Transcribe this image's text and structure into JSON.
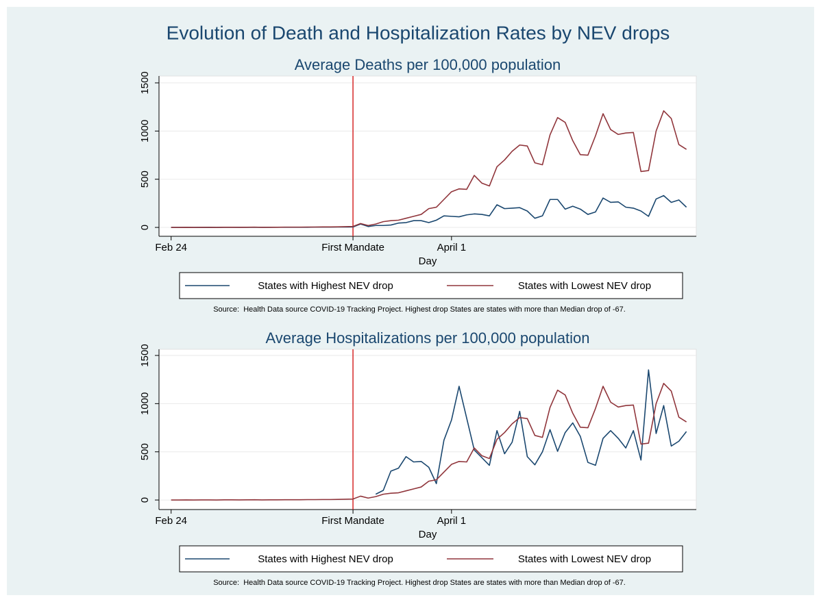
{
  "title": "Evolution of Death and Hospitalization Rates by NEV drops",
  "chart_data": [
    {
      "type": "line",
      "title": "Average Deaths per 100,000 population",
      "x_label": "Day",
      "x": [
        0,
        1,
        2,
        3,
        4,
        5,
        6,
        7,
        8,
        9,
        10,
        11,
        12,
        13,
        14,
        15,
        16,
        17,
        18,
        19,
        20,
        21,
        22,
        23,
        24,
        25,
        26,
        27,
        28,
        29,
        30,
        31,
        32,
        33,
        34,
        35,
        36,
        37,
        38,
        39,
        40,
        41,
        42,
        43,
        44,
        45,
        46,
        47,
        48,
        49,
        50,
        51,
        52,
        53,
        54,
        55,
        56,
        57,
        58,
        59,
        60,
        61,
        62,
        63,
        64,
        65,
        66,
        67,
        68
      ],
      "series": [
        {
          "name": "States with Highest NEV drop",
          "color": "#1a476f",
          "values": [
            0,
            0,
            0,
            0,
            0,
            1,
            0,
            1,
            1,
            1,
            1,
            1,
            1,
            1,
            2,
            2,
            2,
            2,
            2,
            3,
            3,
            3,
            4,
            4,
            5,
            35,
            10,
            20,
            20,
            25,
            45,
            50,
            70,
            70,
            50,
            75,
            120,
            115,
            110,
            130,
            140,
            135,
            120,
            235,
            195,
            200,
            205,
            170,
            95,
            120,
            290,
            290,
            190,
            220,
            190,
            135,
            160,
            305,
            260,
            265,
            210,
            200,
            170,
            115,
            295,
            330,
            260,
            285,
            210
          ]
        },
        {
          "name": "States with Lowest NEV drop",
          "color": "#90353b",
          "values": [
            0,
            0,
            1,
            0,
            1,
            1,
            0,
            2,
            2,
            1,
            2,
            3,
            1,
            2,
            2,
            3,
            3,
            3,
            4,
            4,
            5,
            5,
            6,
            8,
            10,
            40,
            20,
            35,
            60,
            70,
            75,
            95,
            115,
            135,
            195,
            210,
            290,
            370,
            400,
            395,
            540,
            460,
            430,
            630,
            700,
            790,
            855,
            845,
            670,
            650,
            960,
            1140,
            1090,
            900,
            755,
            750,
            950,
            1180,
            1015,
            965,
            980,
            985,
            580,
            590,
            1000,
            1210,
            1130,
            860,
            810
          ]
        }
      ],
      "xlim": [
        -1.6,
        69.3
      ],
      "ylim": [
        -92,
        1571
      ],
      "xticks": [
        {
          "value": 0,
          "label": "Feb 24"
        },
        {
          "value": 24,
          "label": "First Mandate"
        },
        {
          "value": 37,
          "label": "April 1"
        }
      ],
      "yticks": [
        0,
        500,
        1000,
        1500
      ],
      "grid": true,
      "reference_line": {
        "x": 24,
        "color": "#d62728"
      },
      "legend": "bottom",
      "note": "Source:  Health Data source COVID-19 Tracking Project. Highest drop States are states with more than Median drop of -67."
    },
    {
      "type": "line",
      "title": "Average Hospitalizations per 100,000 population",
      "x_label": "Day",
      "x": [
        0,
        1,
        2,
        3,
        4,
        5,
        6,
        7,
        8,
        9,
        10,
        11,
        12,
        13,
        14,
        15,
        16,
        17,
        18,
        19,
        20,
        21,
        22,
        23,
        24,
        25,
        26,
        27,
        28,
        29,
        30,
        31,
        32,
        33,
        34,
        35,
        36,
        37,
        38,
        39,
        40,
        41,
        42,
        43,
        44,
        45,
        46,
        47,
        48,
        49,
        50,
        51,
        52,
        53,
        54,
        55,
        56,
        57,
        58,
        59,
        60,
        61,
        62,
        63,
        64,
        65,
        66,
        67,
        68
      ],
      "series": [
        {
          "name": "States with Highest NEV drop",
          "color": "#1a476f",
          "values": [
            null,
            null,
            null,
            null,
            null,
            null,
            null,
            null,
            null,
            null,
            null,
            null,
            null,
            null,
            null,
            null,
            null,
            null,
            null,
            null,
            null,
            null,
            null,
            null,
            null,
            null,
            null,
            60,
            100,
            300,
            330,
            450,
            395,
            400,
            340,
            170,
            620,
            830,
            1180,
            850,
            520,
            440,
            360,
            720,
            480,
            600,
            920,
            450,
            365,
            500,
            730,
            505,
            700,
            800,
            660,
            390,
            360,
            640,
            720,
            640,
            540,
            720,
            415,
            1350,
            690,
            980,
            560,
            610,
            710
          ]
        },
        {
          "name": "States with Lowest NEV drop",
          "color": "#90353b",
          "values": [
            0,
            0,
            1,
            0,
            1,
            1,
            0,
            2,
            2,
            1,
            2,
            3,
            1,
            2,
            2,
            3,
            3,
            3,
            4,
            4,
            5,
            5,
            6,
            8,
            10,
            40,
            20,
            35,
            60,
            70,
            75,
            95,
            115,
            135,
            195,
            210,
            290,
            370,
            400,
            395,
            540,
            460,
            430,
            630,
            700,
            790,
            855,
            845,
            670,
            650,
            960,
            1140,
            1090,
            900,
            755,
            750,
            950,
            1180,
            1015,
            965,
            980,
            985,
            580,
            590,
            1000,
            1210,
            1130,
            860,
            810
          ]
        }
      ],
      "xlim": [
        -1.6,
        69.3
      ],
      "ylim": [
        -99,
        1564
      ],
      "xticks": [
        {
          "value": 0,
          "label": "Feb 24"
        },
        {
          "value": 24,
          "label": "First Mandate"
        },
        {
          "value": 37,
          "label": "April 1"
        }
      ],
      "yticks": [
        0,
        500,
        1000,
        1500
      ],
      "grid": true,
      "reference_line": {
        "x": 24,
        "color": "#d62728"
      },
      "legend": "bottom",
      "note": "Source:  Health Data source COVID-19 Tracking Project. Highest drop States are states with more than Median drop of -67."
    }
  ]
}
